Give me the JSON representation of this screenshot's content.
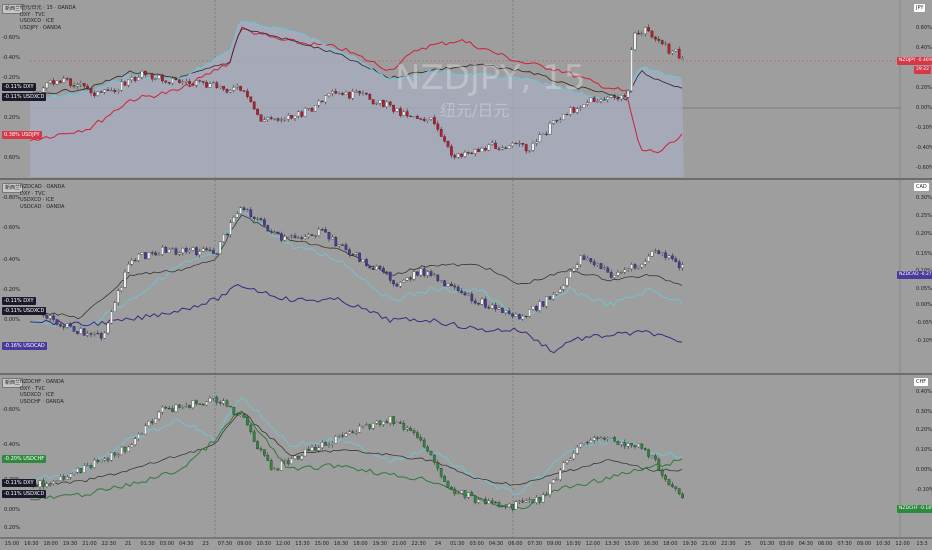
{
  "colors": {
    "bg": "#9e9e9e",
    "area": "#a8acc0",
    "grid": "#8f8f8f",
    "jpy_line": "#d0203a",
    "cad_line": "#3a2a80",
    "chf_line": "#2f7a3a",
    "usd_line": "#6ec6d8",
    "dxy_line": "#2a2a2a",
    "up_candle": "#f0f0f0",
    "down_jpy": "#c01a2a",
    "down_cad": "#4a3a9a",
    "down_chf": "#2e8a3e",
    "nzd_jpy_tag": "#d63848",
    "usdjpy_tag": "#d63848",
    "cad_tag": "#4a3a9a",
    "chf_tag": "#2e8a3e",
    "dxy_tag": "#1a1a2a",
    "usd_tag": "#1a1a2a"
  },
  "watermark": {
    "symbol": "NZDJPY, 15",
    "name": "纽元/日元"
  },
  "panes": [
    {
      "id": "jpy",
      "title_btn": "新西兰",
      "legend": [
        "纽元/日元 · 15 · OANDA",
        "DXY · TVC",
        "USDXCD · ICE",
        "USDJPY · OANDA"
      ],
      "right_title": "JPY",
      "y_labels": [
        "-0.60%",
        "-0.40%",
        "-0.20%",
        "0.00%",
        "0.20%",
        "0.40%",
        "0.60%"
      ],
      "right_labels": [
        "0.60%",
        "0.40%",
        "0.20%",
        "0.00%",
        "-0.20%",
        "-0.40%",
        "-0.60%"
      ],
      "tags": [
        {
          "name": "dxy-tag",
          "value": "-0.11%",
          "label": "DXY",
          "color": "dxy_tag"
        },
        {
          "name": "usd-tag",
          "value": "-0.11%",
          "label": "USDXCD",
          "color": "usd_tag"
        },
        {
          "name": "usdjpy-tag",
          "value": "0.38%",
          "label": "USDJPY",
          "color": "usdjpy_tag"
        }
      ],
      "price_tag": {
        "label": "NZDJPY",
        "value": "-0.46%",
        "sub": "29:22"
      }
    },
    {
      "id": "cad",
      "title_btn": "新西兰",
      "legend": [
        "NZDCAD · OANDA",
        "DXY · TVC",
        "USDXCD · ICE",
        "USDCAD · OANDA"
      ],
      "right_title": "CAD",
      "y_labels": [
        "-0.80%",
        "-0.60%",
        "-0.40%",
        "-0.20%",
        "0.00%"
      ],
      "right_labels": [
        "0.30%",
        "0.25%",
        "0.20%",
        "0.15%",
        "0.10%",
        "0.05%",
        "0.00%",
        "-0.05%",
        "-0.10%"
      ],
      "tags": [
        {
          "name": "dxy-tag",
          "value": "-0.11%",
          "label": "DXY",
          "color": "dxy_tag"
        },
        {
          "name": "usd-tag",
          "value": "-0.11%",
          "label": "USDXCD",
          "color": "usd_tag"
        },
        {
          "name": "usdcad-tag",
          "value": "-0.16%",
          "label": "USDCAD",
          "color": "cad_tag"
        }
      ],
      "price_tag": {
        "label": "NZDCAD",
        "value": "-0.27%",
        "sub": ""
      }
    },
    {
      "id": "chf",
      "title_btn": "新西兰",
      "legend": [
        "NZDCHF · OANDA",
        "DXY · TVC",
        "USDXCD · ICE",
        "USDCHF · OANDA"
      ],
      "right_title": "CHF",
      "y_labels": [
        "-0.60%",
        "-0.40%",
        "-0.20%",
        "0.00%",
        "0.20%"
      ],
      "right_labels": [
        "0.40%",
        "0.30%",
        "0.20%",
        "0.10%",
        "0.00%",
        "-0.10%",
        "-0.20%"
      ],
      "tags": [
        {
          "name": "usdchf-tag",
          "value": "-0.20%",
          "label": "USDCHF",
          "color": "chf_tag"
        },
        {
          "name": "dxy-tag",
          "value": "-0.11%",
          "label": "DXY",
          "color": "dxy_tag"
        },
        {
          "name": "usd-tag",
          "value": "-0.11%",
          "label": "USDXCD",
          "color": "usd_tag"
        }
      ],
      "price_tag": {
        "label": "NZDCHF",
        "value": "-0.18%",
        "sub": ""
      }
    }
  ],
  "x_axis": [
    "15:00",
    "16:30",
    "18:00",
    "19:30",
    "21:00",
    "22:30",
    "21",
    "01:30",
    "03:00",
    "04:30",
    "23",
    "07:30",
    "09:00",
    "10:30",
    "12:00",
    "13:30",
    "15:00",
    "16:30",
    "18:00",
    "19:30",
    "21:00",
    "22:30",
    "24",
    "01:30",
    "03:00",
    "04:30",
    "06:00",
    "07:30",
    "09:00",
    "10:30",
    "12:00",
    "13:30",
    "15:00",
    "16:30",
    "18:00",
    "19:30",
    "21:00",
    "22:30",
    "25",
    "01:30",
    "03:00",
    "04:30",
    "06:00",
    "07:30",
    "09:00",
    "10:30",
    "12:00",
    "13:3"
  ]
}
